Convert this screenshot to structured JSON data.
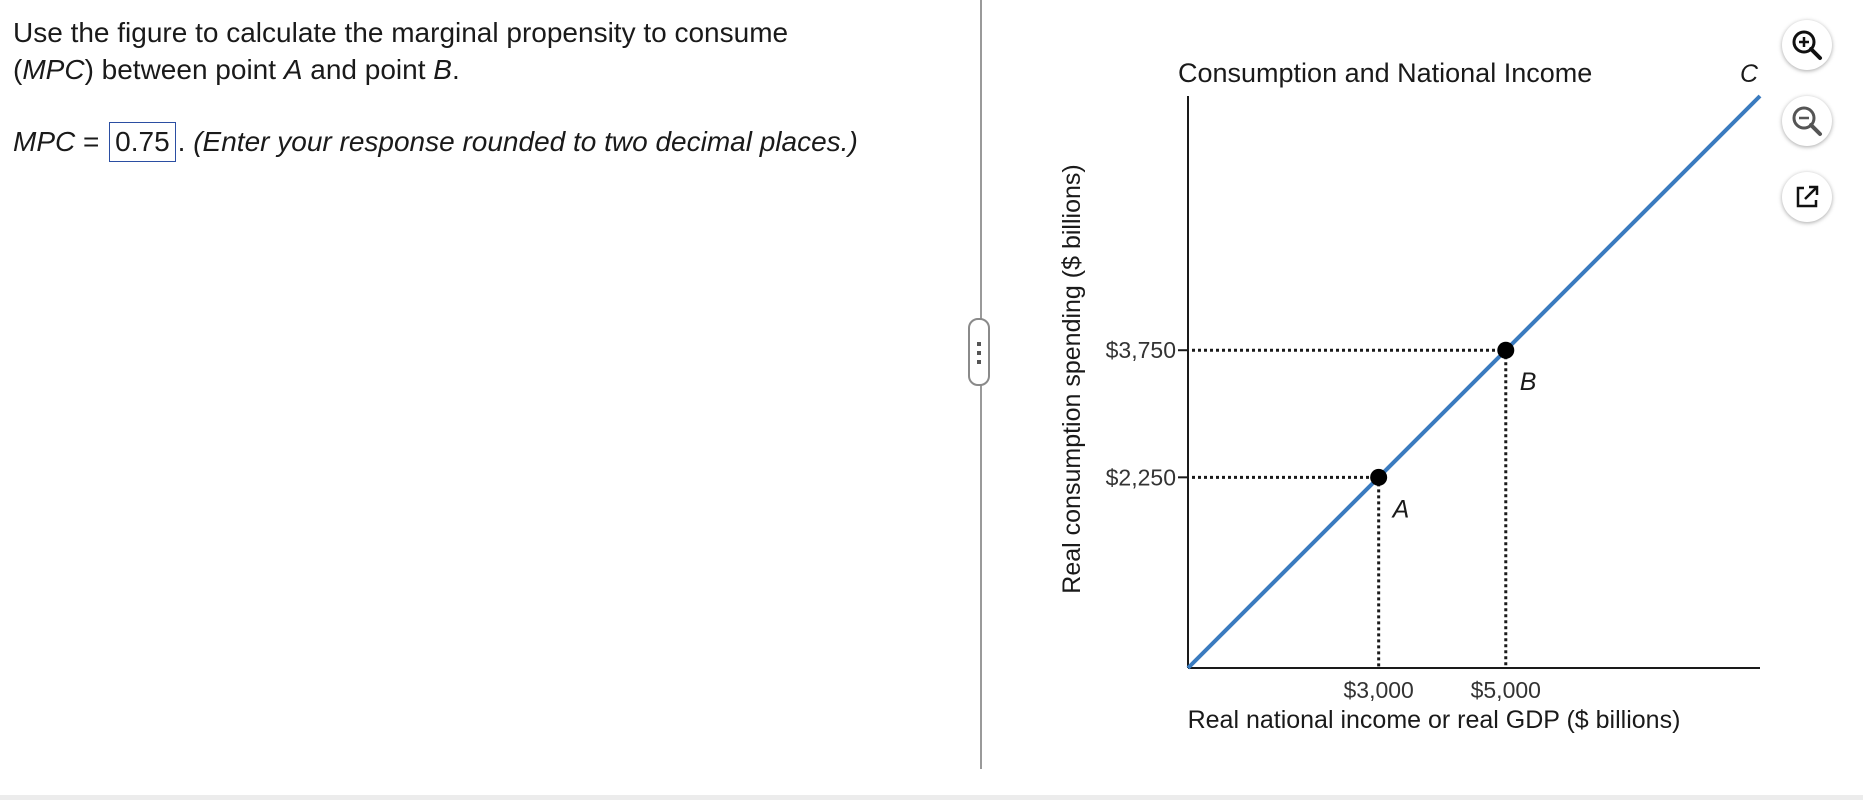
{
  "question": {
    "line1": "Use the figure to calculate the marginal propensity to consume",
    "line2_open": "(",
    "line2_mpc": "MPC",
    "line2_mid": ") between point ",
    "line2_a": "A",
    "line2_and": " and point ",
    "line2_b": "B",
    "line2_end": ".",
    "mpc_label": "MPC",
    "equals": " = ",
    "answer_value": "0.75",
    "period": ".",
    "instruction": " (Enter your response rounded to two decimal places.)"
  },
  "tools": {
    "zoom_in": "zoom-in-icon",
    "zoom_out": "zoom-out-icon",
    "popout": "external-link-icon"
  },
  "colors": {
    "line": "#3a7bbf",
    "answer_border": "#2b4ea2",
    "axis": "#1a1a1a"
  },
  "chart_data": {
    "type": "line",
    "title": "Consumption and National Income",
    "xlabel": "Real national income or real GDP ($ billions)",
    "ylabel": "Real consumption spending ($ billions)",
    "xlim": [
      0,
      9000
    ],
    "ylim": [
      0,
      6750
    ],
    "series": [
      {
        "name": "C",
        "x": [
          0,
          9000
        ],
        "y": [
          0,
          6750
        ]
      }
    ],
    "points": [
      {
        "label": "A",
        "x": 3000,
        "y": 2250
      },
      {
        "label": "B",
        "x": 5000,
        "y": 3750
      }
    ],
    "x_ticks": [
      {
        "value": 3000,
        "label": "$3,000"
      },
      {
        "value": 5000,
        "label": "$5,000"
      }
    ],
    "y_ticks": [
      {
        "value": 2250,
        "label": "$2,250"
      },
      {
        "value": 3750,
        "label": "$3,750"
      }
    ],
    "grid": false,
    "legend": "none"
  }
}
